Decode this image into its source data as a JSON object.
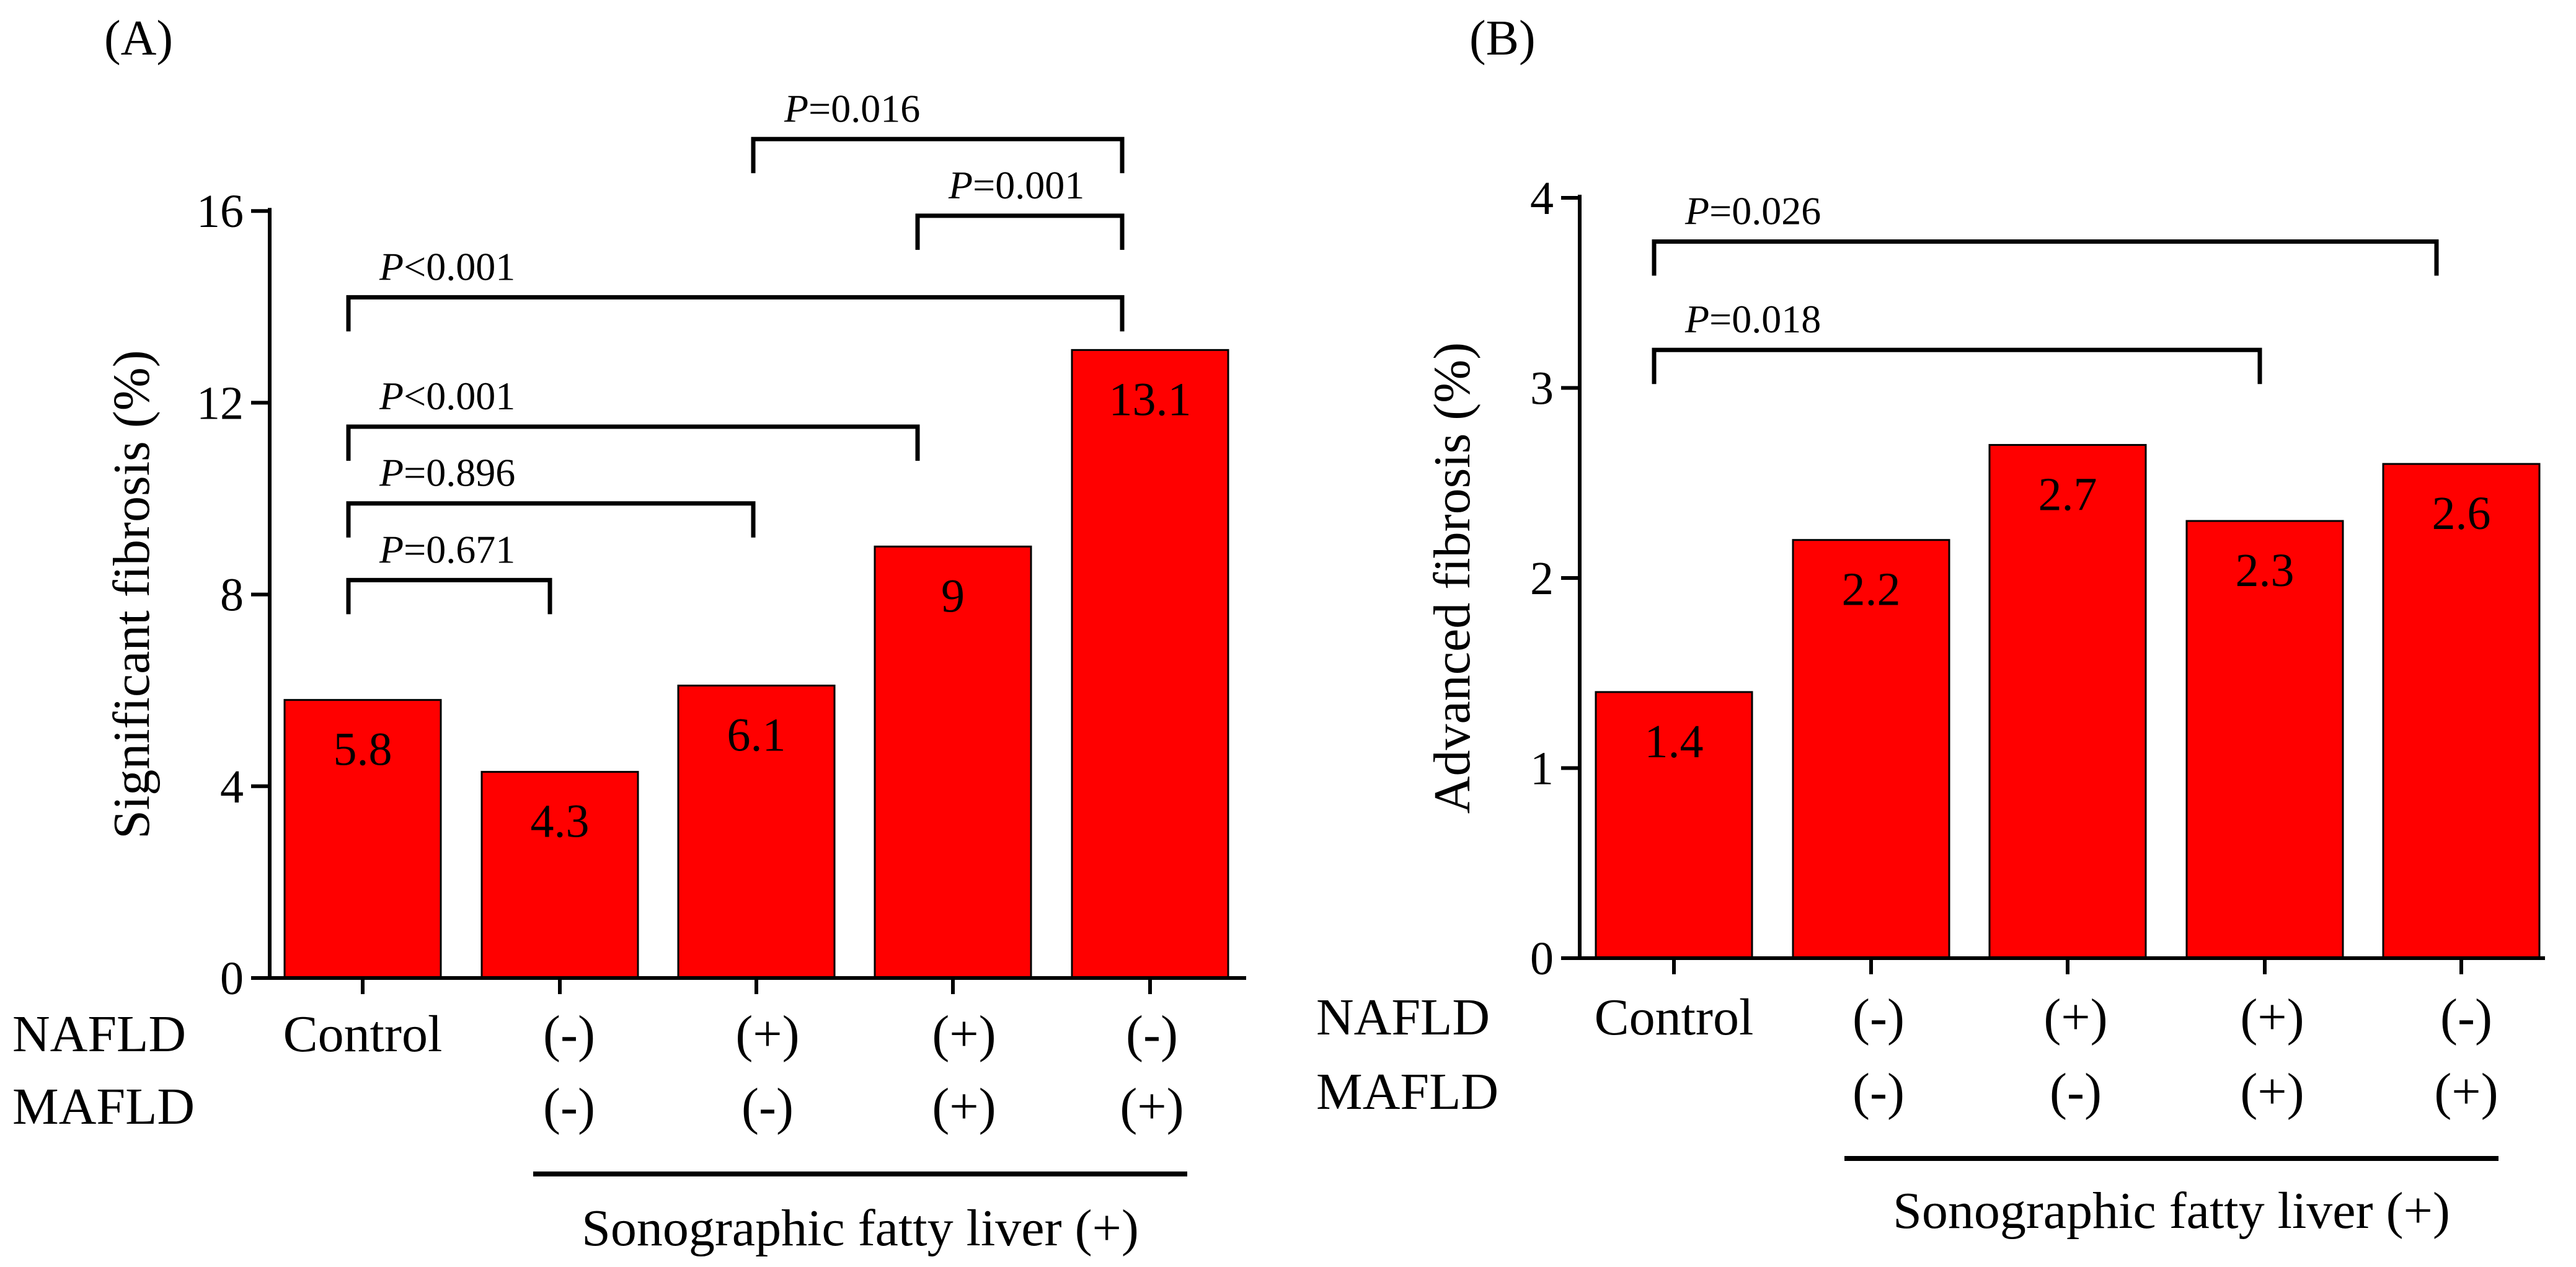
{
  "colors": {
    "bar": "#ff0000",
    "ink": "#000000"
  },
  "chart_data": [
    {
      "type": "bar",
      "panel_label": "(A)",
      "ylabel": "Significant fibrosis (%)",
      "ylim": [
        0,
        16
      ],
      "yticks": [
        "0",
        "4",
        "8",
        "12",
        "16"
      ],
      "categories": [
        "Control",
        "(-)/(-)",
        "(+)/(-)",
        "(+)/(+)",
        "(-)/(+)"
      ],
      "values": [
        5.8,
        4.3,
        6.1,
        9,
        13.1
      ],
      "value_labels": [
        "5.8",
        "4.3",
        "6.1",
        "9",
        "13.1"
      ],
      "row_labels": [
        "NAFLD",
        "MAFLD"
      ],
      "nafld": [
        "Control",
        "(-)",
        "(+)",
        "(+)",
        "(-)"
      ],
      "mafld": [
        "",
        "(-)",
        "(-)",
        "(+)",
        "(+)"
      ],
      "group_label": "Sonographic fatty liver (+)",
      "comparisons": [
        {
          "from": 0,
          "to": 1,
          "y": 8.3,
          "p_symbol": "P",
          "p_rest": "=0.671"
        },
        {
          "from": 0,
          "to": 2,
          "y": 9.9,
          "p_symbol": "P",
          "p_rest": "=0.896"
        },
        {
          "from": 0,
          "to": 3,
          "y": 11.5,
          "p_symbol": "P",
          "p_rest": "<0.001"
        },
        {
          "from": 0,
          "to": 4,
          "y": 14.2,
          "p_symbol": "P",
          "p_rest": "<0.001"
        },
        {
          "from": 3,
          "to": 4,
          "y": 15.9,
          "p_symbol": "P",
          "p_rest": "=0.001"
        },
        {
          "from": 2,
          "to": 4,
          "y": 17.5,
          "p_symbol": "P",
          "p_rest": "=0.016"
        }
      ]
    },
    {
      "type": "bar",
      "panel_label": "(B)",
      "ylabel": "Advanced fibrosis (%)",
      "ylim": [
        0,
        4
      ],
      "yticks": [
        "0",
        "1",
        "2",
        "3",
        "4"
      ],
      "categories": [
        "Control",
        "(-)/(-)",
        "(+)/(-)",
        "(+)/(+)",
        "(-)/(+)"
      ],
      "values": [
        1.4,
        2.2,
        2.7,
        2.3,
        2.6
      ],
      "value_labels": [
        "1.4",
        "2.2",
        "2.7",
        "2.3",
        "2.6"
      ],
      "row_labels": [
        "NAFLD",
        "MAFLD"
      ],
      "nafld": [
        "Control",
        "(-)",
        "(+)",
        "(+)",
        "(-)"
      ],
      "mafld": [
        "",
        "(-)",
        "(-)",
        "(+)",
        "(+)"
      ],
      "group_label": "Sonographic fatty liver (+)",
      "comparisons": [
        {
          "from": 0,
          "to": 3,
          "y": 3.2,
          "p_symbol": "P",
          "p_rest": "=0.018"
        },
        {
          "from": 0,
          "to": 4,
          "y": 3.77,
          "p_symbol": "P",
          "p_rest": "=0.026"
        }
      ]
    }
  ]
}
